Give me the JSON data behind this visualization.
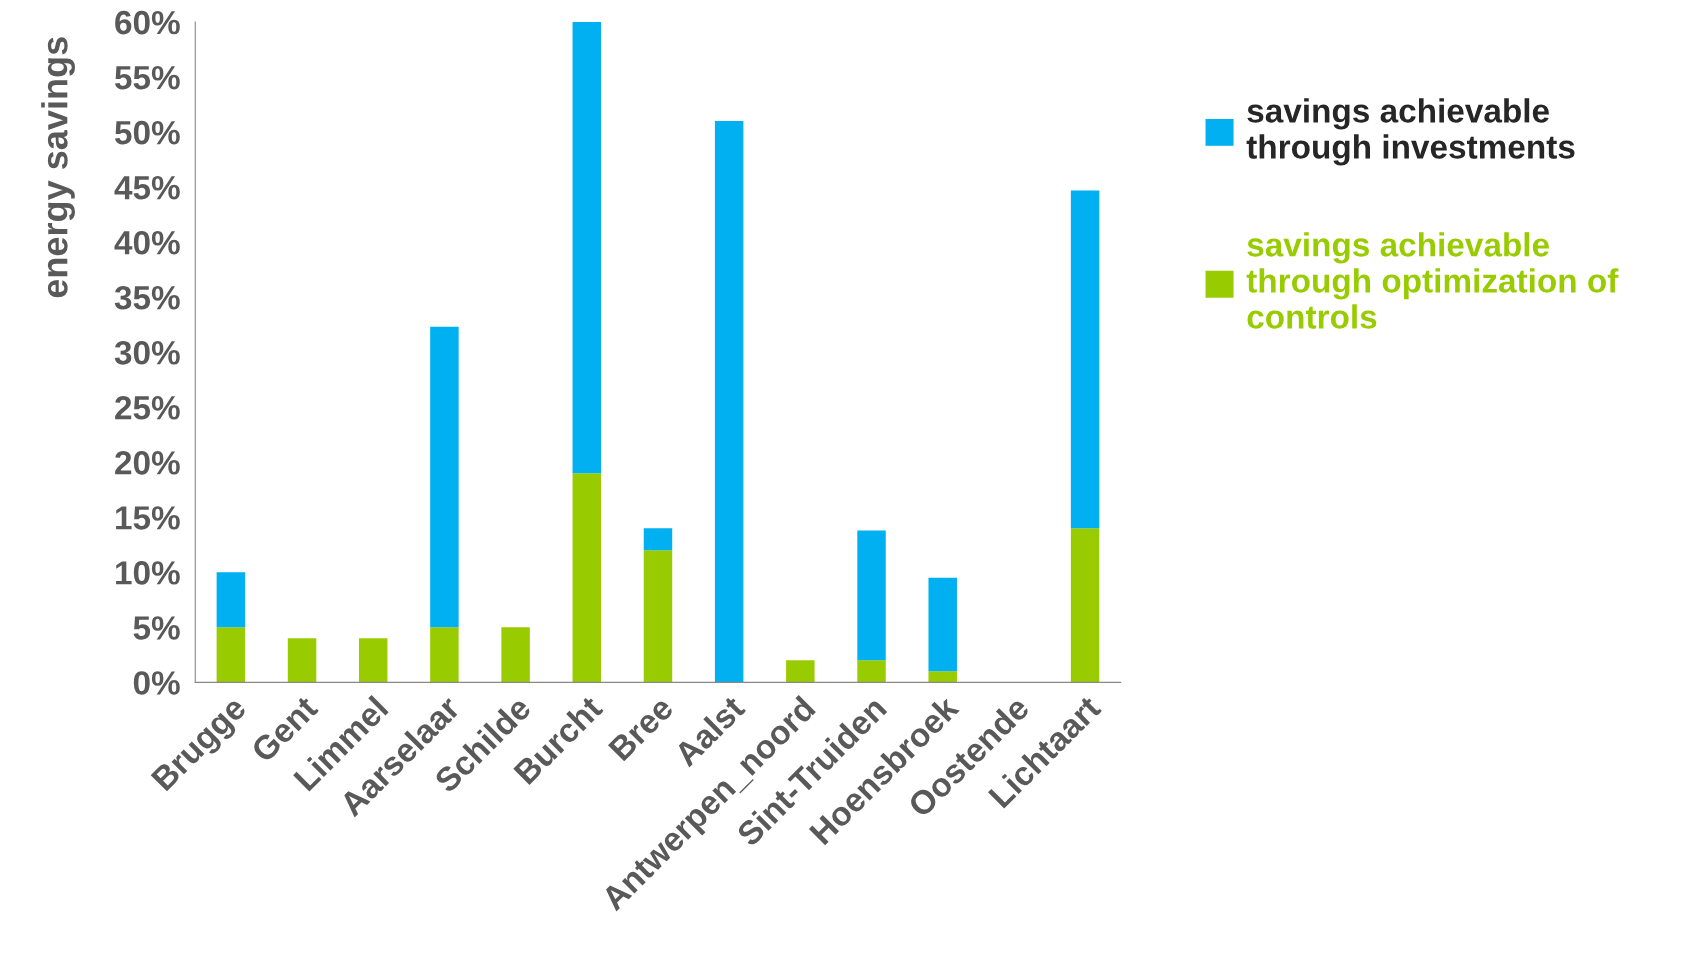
{
  "chart_data": {
    "type": "bar",
    "stacked": true,
    "ylabel": "energy savings",
    "categories": [
      "Brugge",
      "Gent",
      "Limmel",
      "Aarselaar",
      "Schilde",
      "Burcht",
      "Bree",
      "Aalst",
      "Antwerpen_noord",
      "Sint-Truiden",
      "Hoensbroek",
      "Oostende",
      "Lichtaart"
    ],
    "series": [
      {
        "name": "savings achievable through optimization of controls",
        "color": "#99cc00",
        "values": [
          5,
          4,
          4,
          5,
          5,
          19,
          12,
          0,
          2,
          2,
          1,
          0,
          14
        ]
      },
      {
        "name": "savings achievable through investments",
        "color": "#00b0f0",
        "values": [
          5,
          0,
          0,
          27.3,
          0,
          41,
          2,
          51,
          0,
          11.8,
          8.5,
          0,
          30.7
        ]
      }
    ],
    "ylim": [
      0,
      60
    ],
    "yticks": [
      {
        "value": 0,
        "label": "0%"
      },
      {
        "value": 5,
        "label": "5%"
      },
      {
        "value": 10,
        "label": "10%"
      },
      {
        "value": 15,
        "label": "15%"
      },
      {
        "value": 20,
        "label": "20%"
      },
      {
        "value": 25,
        "label": "25%"
      },
      {
        "value": 30,
        "label": "30%"
      },
      {
        "value": 35,
        "label": "35%"
      },
      {
        "value": 40,
        "label": "40%"
      },
      {
        "value": 45,
        "label": "45%"
      },
      {
        "value": 50,
        "label": "50%"
      },
      {
        "value": 55,
        "label": "55%"
      },
      {
        "value": 60,
        "label": "60%"
      }
    ],
    "grid": false,
    "legend": "right"
  }
}
